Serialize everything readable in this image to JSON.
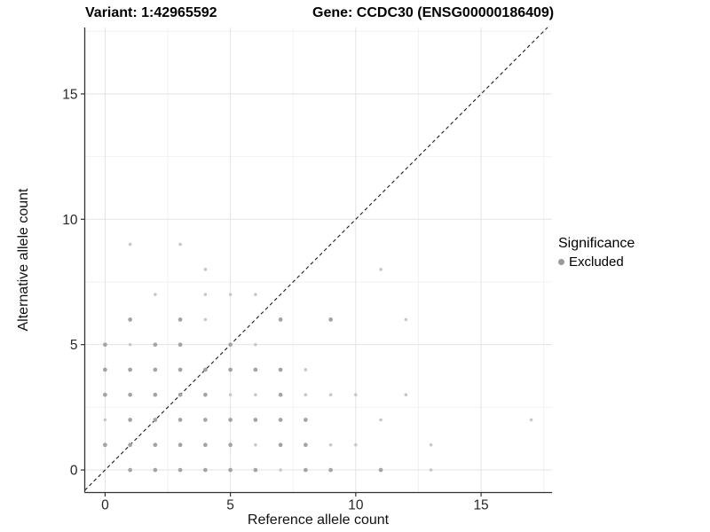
{
  "titles": {
    "variant": "Variant: 1:42965592",
    "gene": "Gene: CCDC30 (ENSG00000186409)"
  },
  "legend": {
    "title": "Significance",
    "items": [
      {
        "label": "Excluded",
        "color": "#999999"
      }
    ]
  },
  "chart_data": {
    "type": "scatter",
    "title_left": "Variant: 1:42965592",
    "title_right": "Gene: CCDC30 (ENSG00000186409)",
    "xlabel": "Reference allele count",
    "ylabel": "Alternative allele count",
    "xlim": [
      -0.81,
      17.83
    ],
    "ylim": [
      -0.9,
      17.65
    ],
    "x_ticks": [
      0,
      5,
      10,
      15
    ],
    "y_ticks": [
      0,
      5,
      10,
      15
    ],
    "x_minor": [
      2.5,
      7.5,
      12.5,
      17.5
    ],
    "y_minor": [
      2.5,
      7.5,
      12.5,
      17.5
    ],
    "grid": {
      "major_color": "#e3e3e3",
      "minor_color": "#f2f2f2"
    },
    "axis_line_color": "#333333",
    "tick_label_color": "#262626",
    "identity_line": {
      "slope": 1,
      "intercept": 0,
      "style": "dashed",
      "color": "#1a1a1a"
    },
    "legend_position": "right",
    "size_classes": {
      "1": {
        "r": 1.8,
        "color": "#c7c7c7"
      },
      "2": {
        "r": 2.35,
        "color": "#a3a3a3"
      }
    },
    "series": [
      {
        "name": "Excluded",
        "points": [
          [
            1,
            0,
            2
          ],
          [
            2,
            0,
            2
          ],
          [
            3,
            0,
            2
          ],
          [
            4,
            0,
            2
          ],
          [
            5,
            0,
            2
          ],
          [
            6,
            0,
            2
          ],
          [
            7,
            0,
            1
          ],
          [
            8,
            0,
            2
          ],
          [
            9,
            0,
            2
          ],
          [
            11,
            0,
            2
          ],
          [
            13,
            0,
            1
          ],
          [
            0,
            1,
            2
          ],
          [
            1,
            1,
            2
          ],
          [
            2,
            1,
            2
          ],
          [
            3,
            1,
            2
          ],
          [
            4,
            1,
            2
          ],
          [
            5,
            1,
            2
          ],
          [
            6,
            1,
            1
          ],
          [
            7,
            1,
            2
          ],
          [
            8,
            1,
            2
          ],
          [
            9,
            1,
            1
          ],
          [
            10,
            1,
            1
          ],
          [
            13,
            1,
            1
          ],
          [
            0,
            2,
            1
          ],
          [
            1,
            2,
            2
          ],
          [
            2,
            2,
            2
          ],
          [
            3,
            2,
            2
          ],
          [
            4,
            2,
            2
          ],
          [
            5,
            2,
            2
          ],
          [
            6,
            2,
            2
          ],
          [
            7,
            2,
            2
          ],
          [
            8,
            2,
            2
          ],
          [
            11,
            2,
            1
          ],
          [
            17,
            2,
            1
          ],
          [
            0,
            3,
            2
          ],
          [
            1,
            3,
            2
          ],
          [
            2,
            3,
            2
          ],
          [
            3,
            3,
            2
          ],
          [
            4,
            3,
            2
          ],
          [
            5,
            3,
            1
          ],
          [
            6,
            3,
            1
          ],
          [
            7,
            3,
            2
          ],
          [
            8,
            3,
            1
          ],
          [
            9,
            3,
            1
          ],
          [
            10,
            3,
            1
          ],
          [
            12,
            3,
            1
          ],
          [
            0,
            4,
            2
          ],
          [
            1,
            4,
            2
          ],
          [
            2,
            4,
            2
          ],
          [
            3,
            4,
            2
          ],
          [
            4,
            4,
            2
          ],
          [
            5,
            4,
            2
          ],
          [
            6,
            4,
            2
          ],
          [
            7,
            4,
            2
          ],
          [
            8,
            4,
            1
          ],
          [
            0,
            5,
            2
          ],
          [
            1,
            5,
            1
          ],
          [
            2,
            5,
            2
          ],
          [
            3,
            5,
            2
          ],
          [
            5,
            5,
            2
          ],
          [
            6,
            5,
            1
          ],
          [
            1,
            6,
            2
          ],
          [
            3,
            6,
            2
          ],
          [
            4,
            6,
            1
          ],
          [
            7,
            6,
            2
          ],
          [
            9,
            6,
            2
          ],
          [
            12,
            6,
            1
          ],
          [
            2,
            7,
            1
          ],
          [
            4,
            7,
            1
          ],
          [
            5,
            7,
            1
          ],
          [
            6,
            7,
            1
          ],
          [
            4,
            8,
            1
          ],
          [
            11,
            8,
            1
          ],
          [
            1,
            9,
            1
          ],
          [
            3,
            9,
            1
          ]
        ]
      }
    ]
  }
}
